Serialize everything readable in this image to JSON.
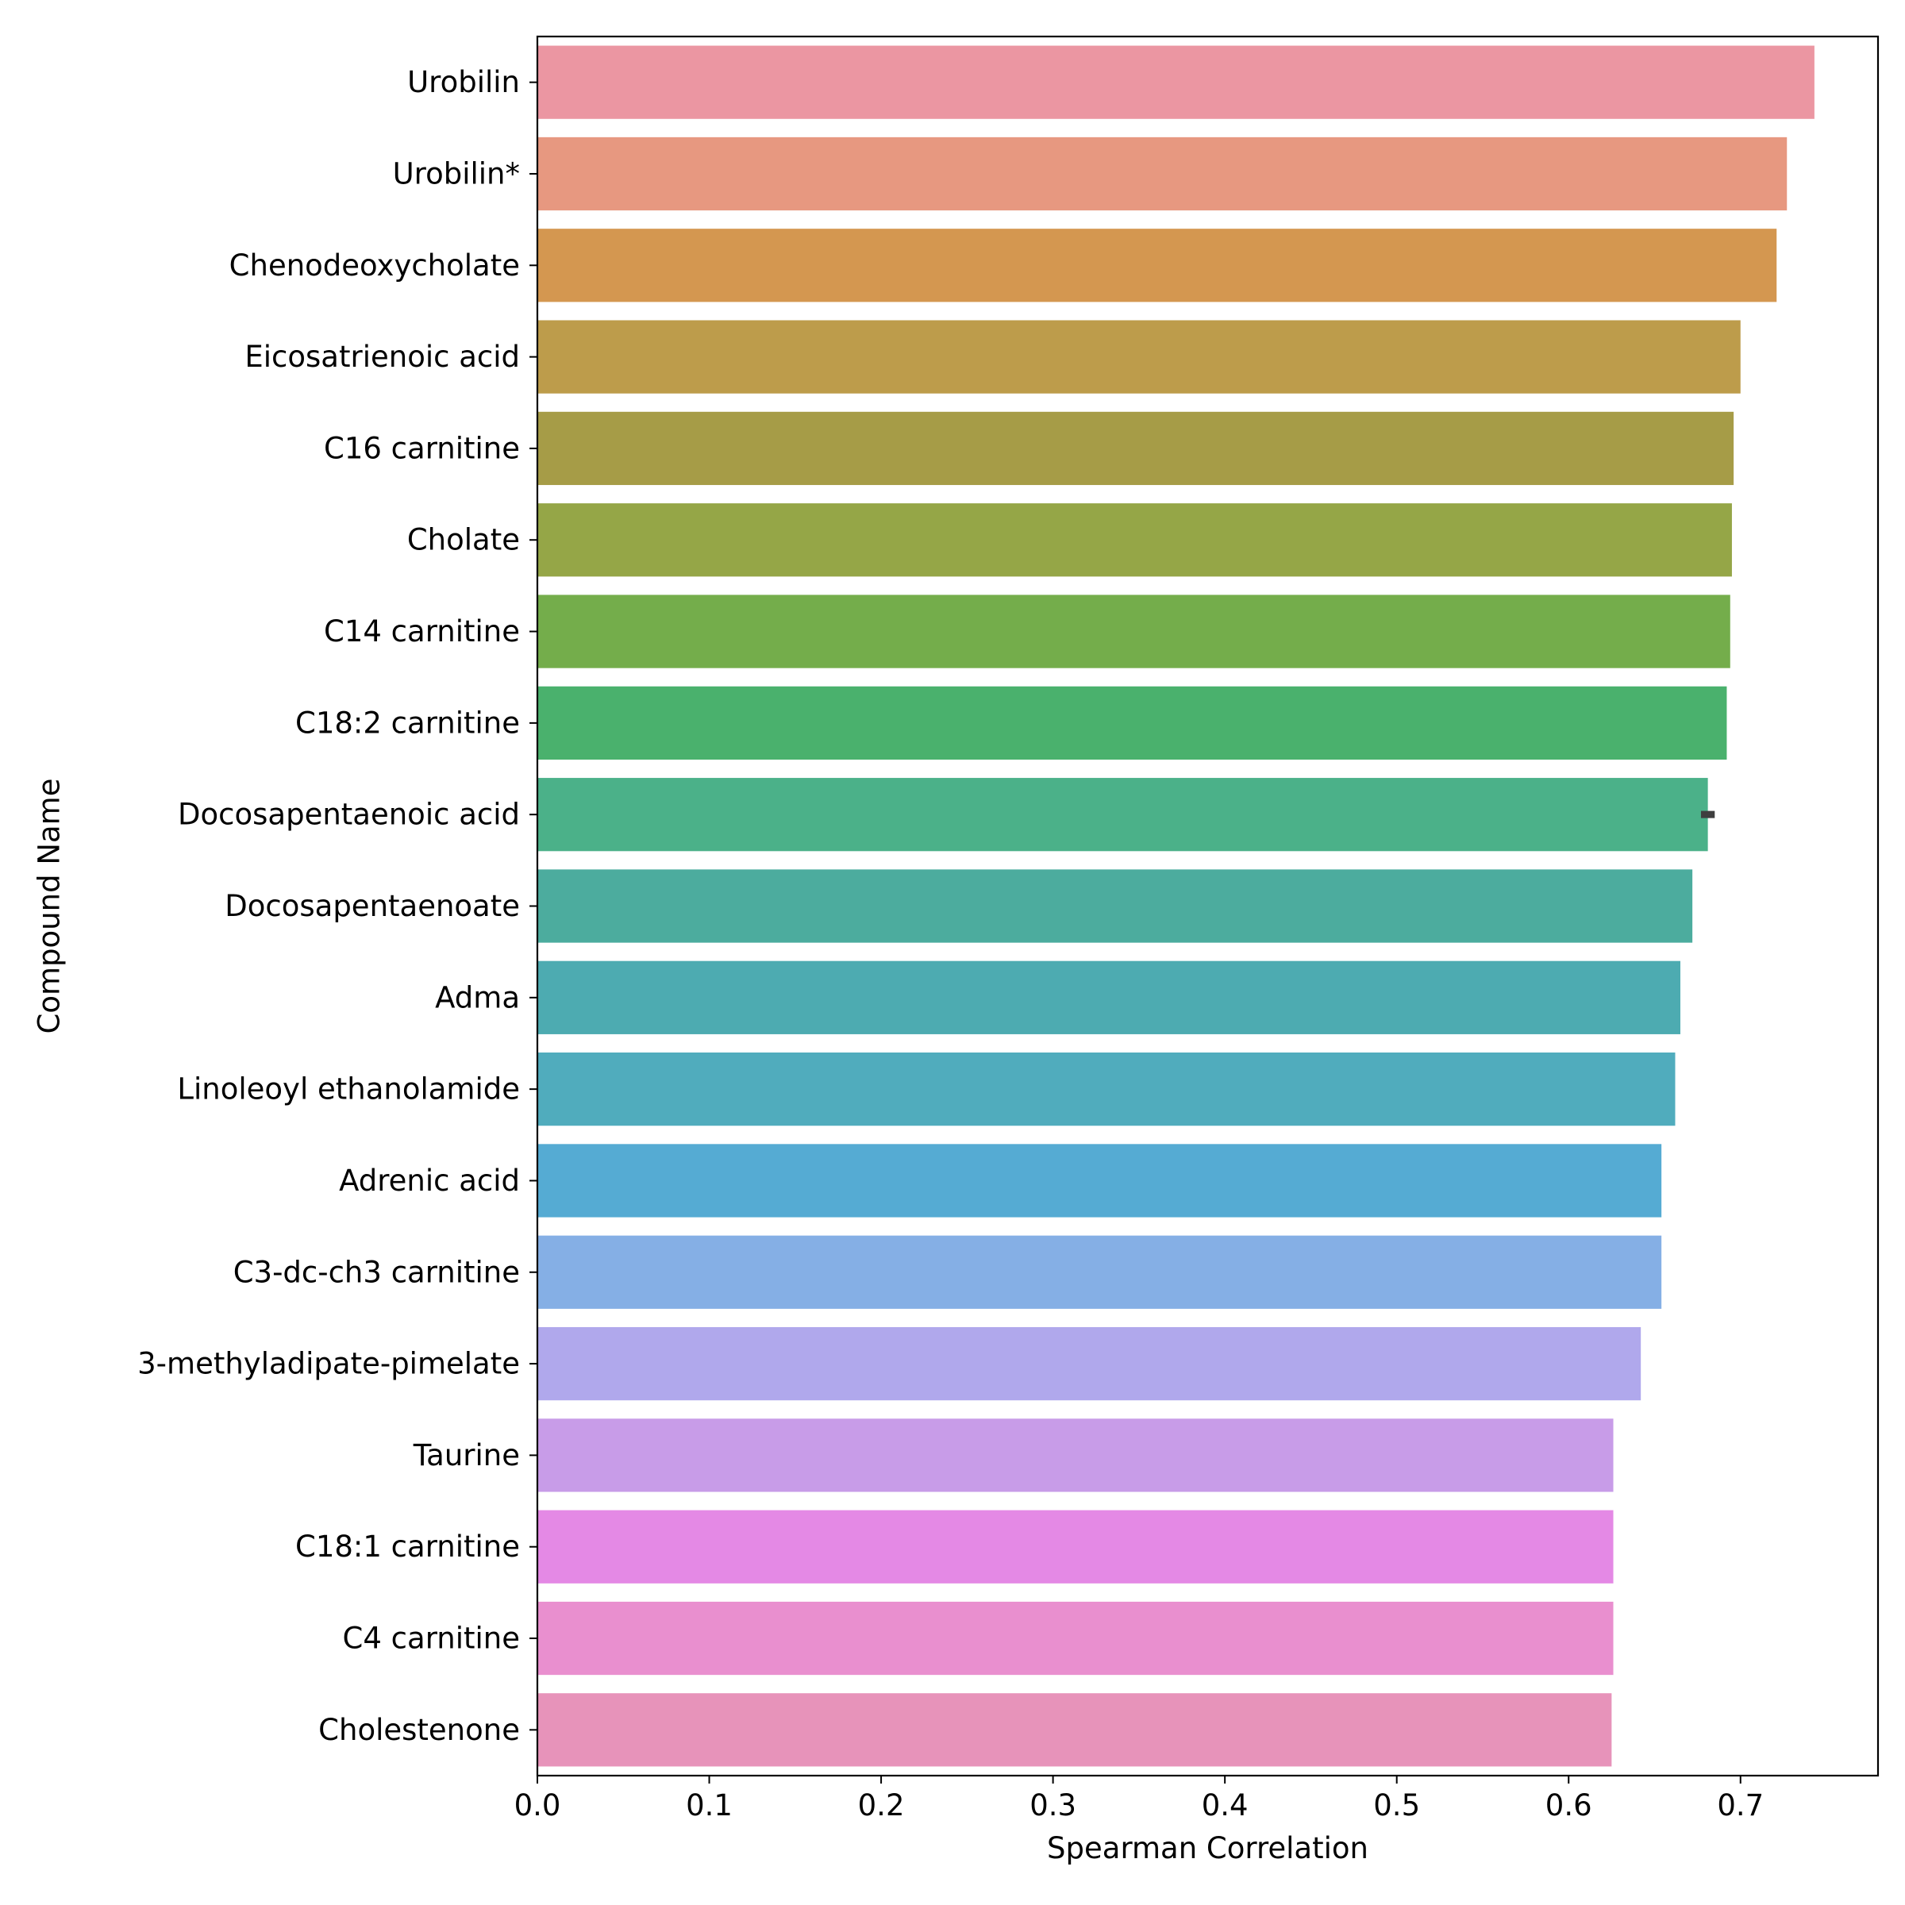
{
  "chart_data": {
    "type": "bar",
    "orientation": "horizontal",
    "xlabel": "Spearman Correlation",
    "ylabel": "Compound Name",
    "xlim": [
      0.0,
      0.78
    ],
    "xticks": [
      "0.0",
      "0.1",
      "0.2",
      "0.3",
      "0.4",
      "0.5",
      "0.6",
      "0.7"
    ],
    "categories": [
      "Urobilin",
      "Urobilin*",
      "Chenodeoxycholate",
      "Eicosatrienoic acid",
      "C16 carnitine",
      "Cholate",
      "C14 carnitine",
      "C18:2 carnitine",
      "Docosapentaenoic acid",
      "Docosapentaenoate",
      "Adma",
      "Linoleoyl ethanolamide",
      "Adrenic acid",
      "C3-dc-ch3 carnitine",
      "3-methyladipate-pimelate",
      "Taurine",
      "C18:1 carnitine",
      "C4 carnitine",
      "Cholestenone"
    ],
    "values": [
      0.743,
      0.727,
      0.721,
      0.7,
      0.696,
      0.695,
      0.694,
      0.692,
      0.681,
      0.672,
      0.665,
      0.662,
      0.654,
      0.654,
      0.642,
      0.626,
      0.626,
      0.626,
      0.625
    ],
    "error_bars": [
      {
        "category": "Docosapentaenoic acid",
        "low": 0.677,
        "high": 0.685
      }
    ],
    "colors": [
      "#eb96a2",
      "#e79880",
      "#d49750",
      "#bd9c4b",
      "#a69c47",
      "#95a647",
      "#74ad4b",
      "#4ab16d",
      "#4bb189",
      "#4cac9e",
      "#4dabb1",
      "#50acbd",
      "#55abd3",
      "#85afe5",
      "#b0a8ec",
      "#c89ce8",
      "#e489e5",
      "#e98fcf",
      "#e793ba"
    ],
    "grid": false,
    "legend": "none"
  }
}
